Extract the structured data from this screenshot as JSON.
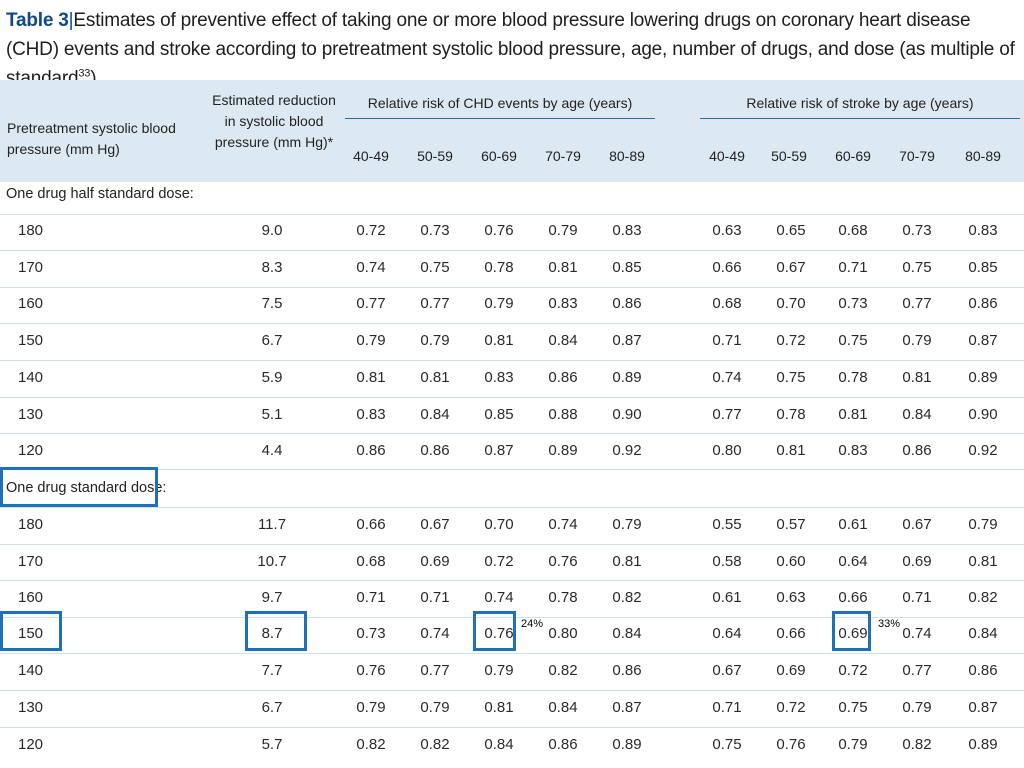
{
  "title": {
    "label": "Table 3",
    "separator": "|",
    "text": "Estimates of preventive effect of taking one or more blood pressure lowering drugs on coronary heart disease (CHD) events and stroke according to pretreatment systolic blood pressure, age, number of drugs, and dose (as multiple of standard",
    "superscript": "33",
    "closing": ")"
  },
  "header": {
    "col1": "Pretreatment systolic blood pressure (mm Hg)",
    "col2": "Estimated reduction in systolic blood pressure (mm Hg)*",
    "chd_group": "Relative risk of CHD events by age (years)",
    "stroke_group": "Relative risk of stroke by age (years)",
    "age_bands": [
      "40-49",
      "50-59",
      "60-69",
      "70-79",
      "80-89"
    ]
  },
  "sections": [
    {
      "title": "One drug half standard dose:",
      "rows": [
        [
          "180",
          "9.0",
          "0.72",
          "0.73",
          "0.76",
          "0.79",
          "0.83",
          "0.63",
          "0.65",
          "0.68",
          "0.73",
          "0.83"
        ],
        [
          "170",
          "8.3",
          "0.74",
          "0.75",
          "0.78",
          "0.81",
          "0.85",
          "0.66",
          "0.67",
          "0.71",
          "0.75",
          "0.85"
        ],
        [
          "160",
          "7.5",
          "0.77",
          "0.77",
          "0.79",
          "0.83",
          "0.86",
          "0.68",
          "0.70",
          "0.73",
          "0.77",
          "0.86"
        ],
        [
          "150",
          "6.7",
          "0.79",
          "0.79",
          "0.81",
          "0.84",
          "0.87",
          "0.71",
          "0.72",
          "0.75",
          "0.79",
          "0.87"
        ],
        [
          "140",
          "5.9",
          "0.81",
          "0.81",
          "0.83",
          "0.86",
          "0.89",
          "0.74",
          "0.75",
          "0.78",
          "0.81",
          "0.89"
        ],
        [
          "130",
          "5.1",
          "0.83",
          "0.84",
          "0.85",
          "0.88",
          "0.90",
          "0.77",
          "0.78",
          "0.81",
          "0.84",
          "0.90"
        ],
        [
          "120",
          "4.4",
          "0.86",
          "0.86",
          "0.87",
          "0.89",
          "0.92",
          "0.80",
          "0.81",
          "0.83",
          "0.86",
          "0.92"
        ]
      ]
    },
    {
      "title": "One drug standard dose:",
      "rows": [
        [
          "180",
          "11.7",
          "0.66",
          "0.67",
          "0.70",
          "0.74",
          "0.79",
          "0.55",
          "0.57",
          "0.61",
          "0.67",
          "0.79"
        ],
        [
          "170",
          "10.7",
          "0.68",
          "0.69",
          "0.72",
          "0.76",
          "0.81",
          "0.58",
          "0.60",
          "0.64",
          "0.69",
          "0.81"
        ],
        [
          "160",
          "9.7",
          "0.71",
          "0.71",
          "0.74",
          "0.78",
          "0.82",
          "0.61",
          "0.63",
          "0.66",
          "0.71",
          "0.82"
        ],
        [
          "150",
          "8.7",
          "0.73",
          "0.74",
          "0.76",
          "0.80",
          "0.84",
          "0.64",
          "0.66",
          "0.69",
          "0.74",
          "0.84"
        ],
        [
          "140",
          "7.7",
          "0.76",
          "0.77",
          "0.79",
          "0.82",
          "0.86",
          "0.67",
          "0.69",
          "0.72",
          "0.77",
          "0.86"
        ],
        [
          "130",
          "6.7",
          "0.79",
          "0.79",
          "0.81",
          "0.84",
          "0.87",
          "0.71",
          "0.72",
          "0.75",
          "0.79",
          "0.87"
        ],
        [
          "120",
          "5.7",
          "0.82",
          "0.82",
          "0.84",
          "0.86",
          "0.89",
          "0.75",
          "0.76",
          "0.79",
          "0.82",
          "0.89"
        ]
      ]
    }
  ],
  "annotations": {
    "chd_reduction": "24%",
    "stroke_reduction": "33%"
  },
  "colors": {
    "header_band": "#dde9f2",
    "highlight_box": "#1f70b8",
    "title_label": "#0e4a8a"
  }
}
